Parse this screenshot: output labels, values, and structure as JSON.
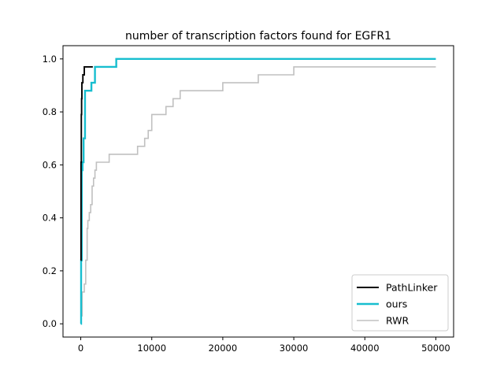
{
  "chart_data": {
    "type": "line",
    "title": "number of transcription factors found for EGFR1",
    "xlabel": "",
    "ylabel": "",
    "xlim": [
      -2500,
      52500
    ],
    "ylim": [
      -0.05,
      1.05
    ],
    "x_ticks": [
      0,
      10000,
      20000,
      30000,
      40000,
      50000
    ],
    "x_tick_labels": [
      "0",
      "10000",
      "20000",
      "30000",
      "40000",
      "50000"
    ],
    "y_ticks": [
      0.0,
      0.2,
      0.4,
      0.6,
      0.8,
      1.0
    ],
    "y_tick_labels": [
      "0.0",
      "0.2",
      "0.4",
      "0.6",
      "0.8",
      "1.0"
    ],
    "grid": false,
    "legend_position": "lower right",
    "step_style": "post",
    "series": [
      {
        "name": "RWR",
        "color": "#c0c0c0",
        "x": [
          0,
          50,
          200,
          300,
          500,
          700,
          900,
          1000,
          1200,
          1400,
          1600,
          1800,
          2000,
          2200,
          2400,
          3000,
          4000,
          5000,
          6000,
          8000,
          8500,
          9000,
          9500,
          10000,
          12000,
          13000,
          14000,
          16000,
          20000,
          25000,
          30000,
          31000,
          50000
        ],
        "y": [
          0.0,
          0.03,
          0.12,
          0.12,
          0.15,
          0.24,
          0.36,
          0.39,
          0.42,
          0.45,
          0.52,
          0.55,
          0.58,
          0.61,
          0.61,
          0.61,
          0.64,
          0.64,
          0.64,
          0.67,
          0.67,
          0.7,
          0.73,
          0.79,
          0.82,
          0.85,
          0.88,
          0.88,
          0.91,
          0.94,
          0.97,
          0.97,
          0.97
        ]
      },
      {
        "name": "ours",
        "color": "#17becf",
        "x": [
          0,
          50,
          150,
          250,
          400,
          600,
          1000,
          1500,
          2000,
          5000,
          50000
        ],
        "y": [
          0.0,
          0.24,
          0.58,
          0.61,
          0.7,
          0.88,
          0.88,
          0.91,
          0.97,
          1.0,
          1.0
        ],
        "line_width": 2.4
      },
      {
        "name": "PathLinker",
        "color": "#000000",
        "x": [
          0,
          40,
          80,
          120,
          160,
          200,
          300,
          400,
          500,
          700,
          1000,
          1500,
          1700
        ],
        "y": [
          0.24,
          0.61,
          0.79,
          0.85,
          0.91,
          0.91,
          0.94,
          0.94,
          0.97,
          0.97,
          0.97,
          0.97,
          0.97
        ],
        "line_width": 1.9
      }
    ],
    "legend_order": [
      "PathLinker",
      "ours",
      "RWR"
    ]
  }
}
